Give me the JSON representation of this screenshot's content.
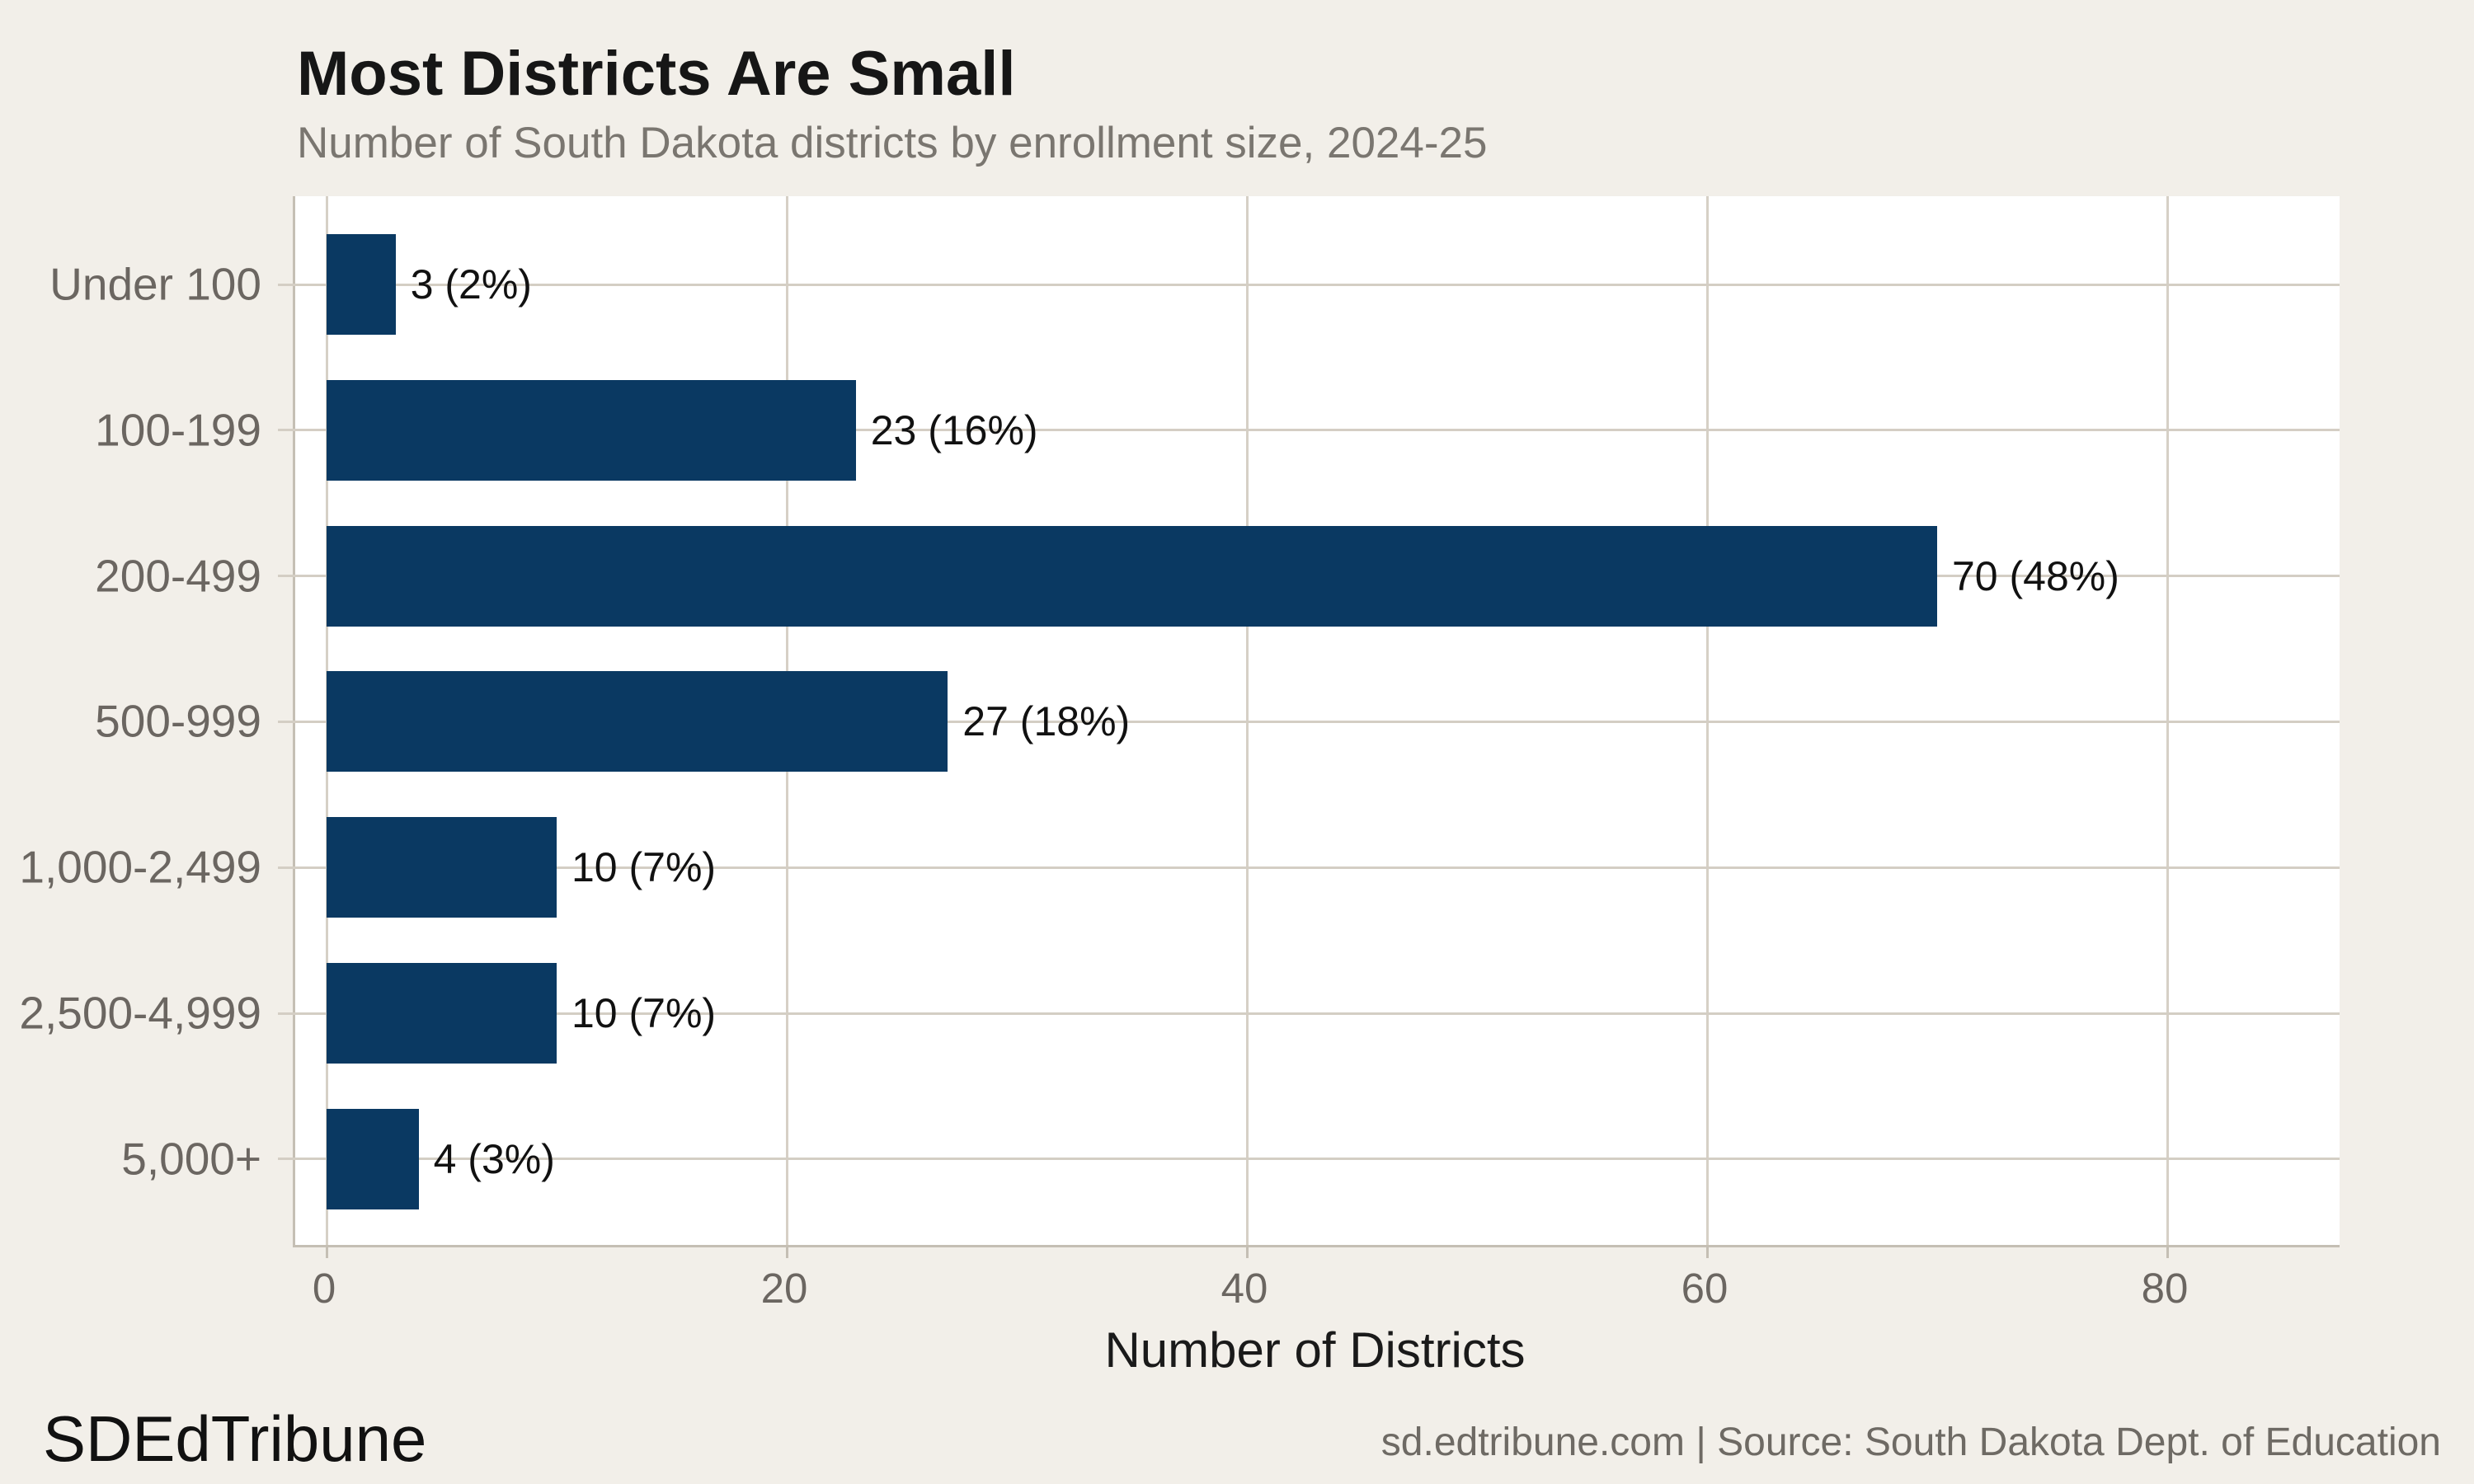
{
  "header": {
    "title": "Most Districts Are Small",
    "subtitle": "Number of South Dakota districts by enrollment size, 2024-25"
  },
  "footer": {
    "brand": "SDEdTribune",
    "source": "sd.edtribune.com | Source: South Dakota Dept. of Education"
  },
  "colors": {
    "bar": "#0a3962",
    "page_background": "#f2efe9",
    "panel_background": "#ffffff",
    "gridline": "#d6d0c6",
    "axis_text": "#6b6661",
    "title_text": "#161616",
    "subtitle_text": "#7a7670",
    "source_text": "#6e6a64"
  },
  "chart_data": {
    "type": "bar",
    "orientation": "horizontal",
    "categories": [
      "Under 100",
      "100-199",
      "200-499",
      "500-999",
      "1,000-2,499",
      "2,500-4,999",
      "5,000+"
    ],
    "values": [
      3,
      23,
      70,
      27,
      10,
      10,
      4
    ],
    "data_labels": [
      "3 (2%)",
      "23 (16%)",
      "70 (48%)",
      "27 (18%)",
      "10 (7%)",
      "10 (7%)",
      "4 (3%)"
    ],
    "xlabel": "Number of Districts",
    "xticks": [
      0,
      20,
      40,
      60,
      80
    ],
    "xlim": [
      0,
      87.5
    ],
    "grid": true,
    "legend": false
  }
}
